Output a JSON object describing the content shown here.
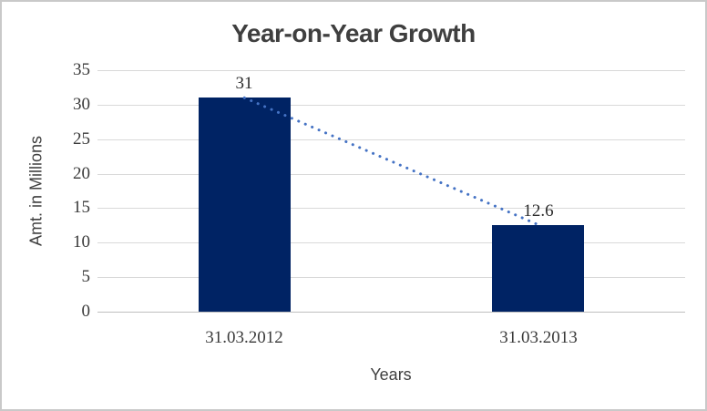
{
  "chart_data": {
    "type": "bar",
    "title": "Year-on-Year Growth",
    "xlabel": "Years",
    "ylabel": "Amt. in Millions",
    "categories": [
      "31.03.2012",
      "31.03.2013"
    ],
    "values": [
      31,
      12.6
    ],
    "data_labels": [
      "31",
      "12.6"
    ],
    "yticks": [
      35,
      30,
      25,
      20,
      15,
      10,
      5,
      0
    ],
    "ylim": [
      0,
      35
    ],
    "grid": true,
    "legend_position": "none",
    "trendline": {
      "style": "dotted",
      "points": [
        31,
        12.6
      ]
    },
    "colors": {
      "bar": "#002364",
      "trend": "#4472c4",
      "gridline": "#d9d9d9",
      "axis_line": "#bfbfbf",
      "text": "#3f3f3f",
      "frame_border": "#c9c9c9",
      "background": "#ffffff"
    }
  }
}
